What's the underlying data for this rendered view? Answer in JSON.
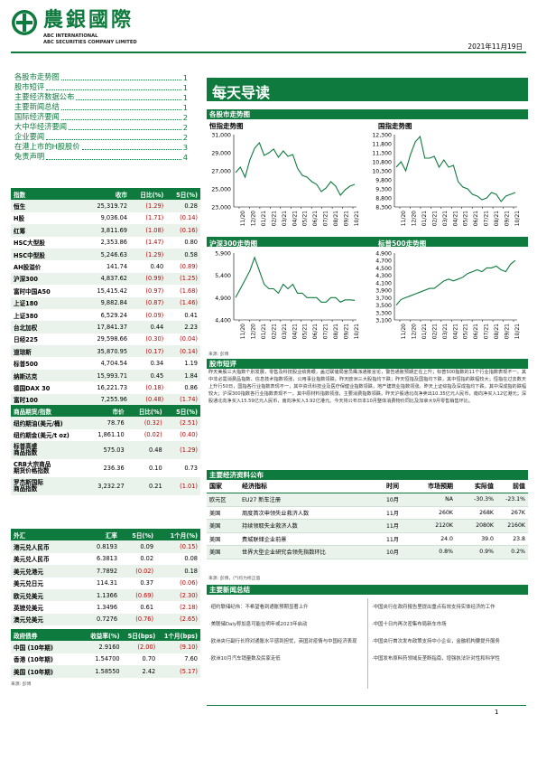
{
  "header": {
    "logo_cn": "農銀國際",
    "logo_en1": "ABC INTERNATIONAL",
    "logo_en2": "ABC SECURITIES COMPANY LIMITED",
    "date": "2021年11月19日"
  },
  "toc": [
    {
      "label": "各股市走势图",
      "page": "1"
    },
    {
      "label": "股市短评",
      "page": "1"
    },
    {
      "label": "主要经济数据公布",
      "page": "1"
    },
    {
      "label": "主要新闻总结",
      "page": "1"
    },
    {
      "label": "国际经济要闻",
      "page": "2"
    },
    {
      "label": "大中华经济要闻",
      "page": "2"
    },
    {
      "label": "企业要闻",
      "page": "2"
    },
    {
      "label": "在港上市的H股股价",
      "page": "3"
    },
    {
      "label": "免责声明",
      "page": "4"
    }
  ],
  "index_table": {
    "headers": [
      "指数",
      "收市",
      "日比(%)",
      "5日(%)"
    ],
    "rows": [
      [
        "恒生",
        "25,319.72",
        "(1.29)",
        "0.28"
      ],
      [
        "H股",
        "9,036.04",
        "(1.71)",
        "(0.14)"
      ],
      [
        "红筹",
        "3,811.69",
        "(1.08)",
        "(0.16)"
      ],
      [
        "HSC大型股",
        "2,353.86",
        "(1.47)",
        "0.80"
      ],
      [
        "HSC中型股",
        "5,246.63",
        "(1.29)",
        "0.58"
      ],
      [
        "AH股溢价",
        "141.74",
        "0.40",
        "(0.89)"
      ],
      [
        "沪深300",
        "4,837.62",
        "(0.99)",
        "(1.25)"
      ],
      [
        "富时中国A50",
        "15,415.42",
        "(0.97)",
        "(1.68)"
      ],
      [
        "上证180",
        "9,882.84",
        "(0.87)",
        "(1.46)"
      ],
      [
        "上证380",
        "6,529.24",
        "(0.09)",
        "0.41"
      ],
      [
        "台北加权",
        "17,841.37",
        "0.44",
        "2.23"
      ],
      [
        "日经225",
        "29,598.66",
        "(0.30)",
        "(0.04)"
      ],
      [
        "道琼斯",
        "35,870.95",
        "(0.17)",
        "(0.14)"
      ],
      [
        "标普500",
        "4,704.54",
        "0.34",
        "1.19"
      ],
      [
        "纳斯达克",
        "15,993.71",
        "0.45",
        "1.84"
      ],
      [
        "德国DAX 30",
        "16,221.73",
        "(0.18)",
        "0.86"
      ],
      [
        "富时100",
        "7,255.96",
        "(0.48)",
        "(1.74)"
      ],
      [
        "法国CAC 40",
        "7,141.98",
        "(0.21)",
        "1.17"
      ]
    ]
  },
  "commodity_table": {
    "headers": [
      "商品期货/指数",
      "市价",
      "日比(%)",
      "5日(%)"
    ],
    "rows": [
      [
        "纽约期油(美元/桶)",
        "78.76",
        "(0.32)",
        "(2.51)"
      ],
      [
        "纽约期金(美元/t oz)",
        "1,861.10",
        "(0.02)",
        "(0.40)"
      ],
      [
        "标普高盛\n商品指数",
        "575.03",
        "0.48",
        "(1.29)"
      ],
      [
        "CRB大宗商品\n期货价格指数",
        "236.36",
        "0.10",
        "0.73"
      ],
      [
        "罗杰斯国际\n商品指数",
        "3,232.27",
        "0.21",
        "(1.01)"
      ]
    ]
  },
  "fx_table": {
    "headers": [
      "外汇",
      "汇率",
      "5日(%)",
      "1个月(%)"
    ],
    "rows": [
      [
        "港元兑人民币",
        "0.8193",
        "0.09",
        "(0.15)"
      ],
      [
        "美元兑人民币",
        "6.3813",
        "0.02",
        "0.08"
      ],
      [
        "美元兑港元",
        "7.7892",
        "(0.02)",
        "0.18"
      ],
      [
        "美元兑日元",
        "114.31",
        "0.37",
        "(0.06)"
      ],
      [
        "欧元兑美元",
        "1.1366",
        "(0.69)",
        "(2.30)"
      ],
      [
        "英镑兑美元",
        "1.3496",
        "0.61",
        "(2.18)"
      ],
      [
        "澳元兑美元",
        "0.7276",
        "(0.76)",
        "(2.65)"
      ]
    ]
  },
  "bond_table": {
    "headers": [
      "政府债券",
      "收益率(%)",
      "5日(bps)",
      "1个月(bps)"
    ],
    "rows": [
      [
        "中国 (10年期)",
        "2.9160",
        "(2.00)",
        "(9.10)"
      ],
      [
        "香港 (10年期)",
        "1.54700",
        "0.70",
        "7.60"
      ],
      [
        "美国 (10年期)",
        "1.58550",
        "2.42",
        "(5.17)"
      ]
    ]
  },
  "source_left": "来源: 彭博",
  "banner": "每天导读",
  "charts_section": "各股市走势图",
  "charts": [
    {
      "title": "恒指走势图",
      "yticks": [
        "31,000",
        "29,000",
        "27,000",
        "25,000",
        "23,000"
      ],
      "ymin": 23000,
      "ymax": 31000,
      "values": [
        26800,
        27400,
        26300,
        28200,
        29500,
        30100,
        28700,
        29000,
        29400,
        28500,
        29200,
        28600,
        28800,
        27300,
        26500,
        26300,
        25800,
        25500,
        24700,
        25100,
        25800,
        25300,
        24300,
        24900,
        25300,
        25500
      ]
    },
    {
      "title": "国指走势图",
      "yticks": [
        "12,300",
        "11,800",
        "11,300",
        "10,800",
        "10,300",
        "9,800",
        "9,300",
        "8,800",
        "8,300"
      ],
      "ymin": 8300,
      "ymax": 12300,
      "values": [
        10500,
        10800,
        10300,
        11200,
        11900,
        12200,
        11000,
        11000,
        11100,
        10500,
        10900,
        10500,
        10600,
        9700,
        9400,
        9300,
        9000,
        8900,
        8700,
        8800,
        9100,
        9000,
        8600,
        8900,
        9000,
        9100
      ]
    },
    {
      "title": "沪深300走势图",
      "yticks": [
        "5,900",
        "5,400",
        "4,900",
        "4,400"
      ],
      "ymin": 4400,
      "ymax": 5900,
      "values": [
        4900,
        5100,
        5300,
        5500,
        5800,
        5500,
        5200,
        5100,
        5100,
        5000,
        5200,
        5100,
        5200,
        5000,
        5000,
        4900,
        4900,
        4900,
        4800,
        4800,
        4900,
        4900,
        4800,
        4850,
        4850,
        4840
      ]
    },
    {
      "title": "标普500走势图",
      "yticks": [
        "4,900",
        "4,700",
        "4,500",
        "4,300",
        "4,100",
        "3,900",
        "3,700",
        "3,500",
        "3,300",
        "3,100"
      ],
      "ymin": 3100,
      "ymax": 4900,
      "values": [
        3500,
        3650,
        3700,
        3750,
        3800,
        3850,
        3900,
        3950,
        3950,
        4050,
        4150,
        4200,
        4150,
        4200,
        4250,
        4350,
        4400,
        4450,
        4400,
        4500,
        4500,
        4550,
        4450,
        4400,
        4600,
        4700
      ]
    }
  ],
  "chart_xticks": [
    "11/20",
    "12/20",
    "01/21",
    "02/21",
    "03/21",
    "04/21",
    "05/21",
    "06/21",
    "07/21",
    "08/21",
    "09/21",
    "10/21"
  ],
  "source_charts": "来源: 彭博",
  "commentary_title": "股市短评",
  "commentary": "昨天美股三大指数个别发展，零售及科技股业绩亮眼，盖过联储局官员鹰派通胀言论，警告通胀预期正在上升；标普500指数的11个行业指数表现不一，其中非必需消费品指数、信息技术指数领涨，公用事业指数领跌。昨天欧洲三大股指均下跌；昨天恒指及国指均下跌，其中恒指的跌幅较大；恒指在过去数天上升行50日，国指各行业指数表现不一，其中资讯科技业及医疗保健业指数领跌，地产建筑业指数领涨。昨天上证综指及深成指均下跌，其中深成指的跌幅较大；沪深300指数各行业指数表现不一，其中原材料指数领涨，主要消费指数领跌。昨天沪股通北向净卖出10.35亿元人民币，南向净买入12亿港元；深股通北向净买入15.59亿元人民币，南向净买入3.92亿港元。今天将公布日本10月整体消费物价同比及加拿大9月零售销售环比。",
  "events": {
    "title": "主要经济资料公布",
    "headers": [
      "国家",
      "经济指标",
      "时间",
      "市场预期",
      "实际值",
      "前值"
    ],
    "rows": [
      [
        "欧元区",
        "EU27 新车注册",
        "10月",
        "NA",
        "-30.3%",
        "-23.1%"
      ],
      [
        "美国",
        "周度首次申领失业救济人数",
        "11月",
        "260K",
        "268K",
        "267K"
      ],
      [
        "美国",
        "持续领取失业救济人数",
        "11月",
        "2120K",
        "2080K",
        "2160K"
      ],
      [
        "美国",
        "费城联储企业前景",
        "11月",
        "24.0",
        "39.0",
        "23.8"
      ],
      [
        "美国",
        "世界大型企业研究会领先指数环比",
        "10月",
        "0.8%",
        "0.9%",
        "0.2%"
      ]
    ]
  },
  "source_events": "来源: 彭博，(*)均为修正值",
  "news": {
    "title": "主要新闻总结",
    "items": [
      "·纽约联储纪伟：不希望看到通胀预期显著上升",
      "·中国央行在政府报告里提出重点有效支持实体经济的工作",
      "·美联储Daly称加息可能在明年或2023年启动",
      "·中国十日内再次密集布局新车市场",
      "·欧洲央行副行长称对通胀水平感到担忧，英国对疫情与中国经济表现",
      "·中国央行首次发布政策支持中小企业，金融机构要提升服务",
      "·欧洲10月汽车销量数及民家走低",
      "·中国发布原料药领域反垄断指南，增强执法针对性和科学性"
    ]
  },
  "page_number": "1"
}
